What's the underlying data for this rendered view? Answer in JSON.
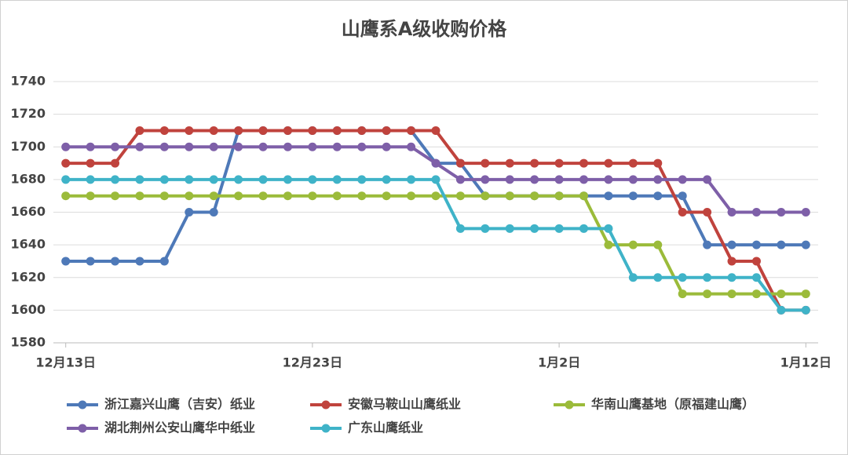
{
  "chart_data": {
    "type": "line",
    "title": "山鹰系A级收购价格",
    "categories": [
      "12月13日",
      null,
      null,
      null,
      null,
      null,
      null,
      null,
      null,
      null,
      "12月23日",
      null,
      null,
      null,
      null,
      null,
      null,
      null,
      null,
      null,
      "1月2日",
      null,
      null,
      null,
      null,
      null,
      null,
      null,
      null,
      null,
      "1月12日"
    ],
    "series": [
      {
        "name": "浙江嘉兴山鹰（吉安）纸业",
        "color": "#4e79b8",
        "values": [
          1630,
          1630,
          1630,
          1630,
          1630,
          1660,
          1660,
          1710,
          1710,
          1710,
          1710,
          1710,
          1710,
          1710,
          1710,
          1690,
          1690,
          1670,
          1670,
          1670,
          1670,
          1670,
          1670,
          1670,
          1670,
          1670,
          1640,
          1640,
          1640,
          1640,
          1640
        ]
      },
      {
        "name": "安徽马鞍山山鹰纸业",
        "color": "#c0433d",
        "values": [
          1690,
          1690,
          1690,
          1710,
          1710,
          1710,
          1710,
          1710,
          1710,
          1710,
          1710,
          1710,
          1710,
          1710,
          1710,
          1710,
          1690,
          1690,
          1690,
          1690,
          1690,
          1690,
          1690,
          1690,
          1690,
          1660,
          1660,
          1630,
          1630,
          1600,
          1600
        ]
      },
      {
        "name": "华南山鹰基地（原福建山鹰）",
        "color": "#9bbb3a",
        "values": [
          1670,
          1670,
          1670,
          1670,
          1670,
          1670,
          1670,
          1670,
          1670,
          1670,
          1670,
          1670,
          1670,
          1670,
          1670,
          1670,
          1670,
          1670,
          1670,
          1670,
          1670,
          1670,
          1640,
          1640,
          1640,
          1610,
          1610,
          1610,
          1610,
          1610,
          1610
        ]
      },
      {
        "name": "湖北荆州公安山鹰华中纸业",
        "color": "#7e5fa8",
        "values": [
          1700,
          1700,
          1700,
          1700,
          1700,
          1700,
          1700,
          1700,
          1700,
          1700,
          1700,
          1700,
          1700,
          1700,
          1700,
          1690,
          1680,
          1680,
          1680,
          1680,
          1680,
          1680,
          1680,
          1680,
          1680,
          1680,
          1680,
          1660,
          1660,
          1660,
          1660
        ]
      },
      {
        "name": "广东山鹰纸业",
        "color": "#3fb3c8",
        "values": [
          1680,
          1680,
          1680,
          1680,
          1680,
          1680,
          1680,
          1680,
          1680,
          1680,
          1680,
          1680,
          1680,
          1680,
          1680,
          1680,
          1650,
          1650,
          1650,
          1650,
          1650,
          1650,
          1650,
          1620,
          1620,
          1620,
          1620,
          1620,
          1620,
          1600,
          1600
        ]
      }
    ],
    "ylim": [
      1580,
      1740
    ],
    "yticks": [
      1580,
      1600,
      1620,
      1640,
      1660,
      1680,
      1700,
      1720,
      1740
    ],
    "grid": true
  }
}
